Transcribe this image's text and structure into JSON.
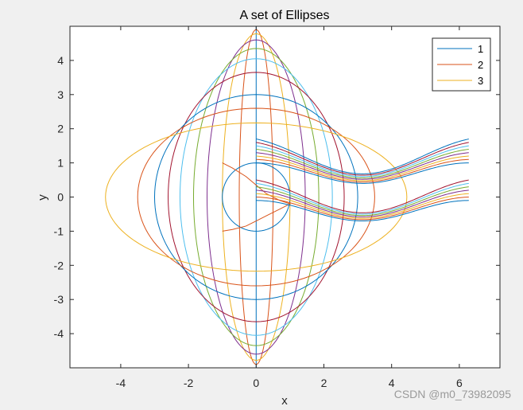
{
  "colors": {
    "figure_bg": "#f0f0f0",
    "axes_bg": "#ffffff",
    "axis_line": "#262626",
    "palette": [
      "#0072BD",
      "#D95319",
      "#EDB120",
      "#7E2F8E",
      "#77AC30",
      "#4DBEEE",
      "#A2142F"
    ]
  },
  "chart_data": {
    "type": "line",
    "title": "A set of Ellipses",
    "xlabel": "x",
    "ylabel": "y",
    "xlim": [
      -5.5,
      7.2
    ],
    "ylim": [
      -5,
      5
    ],
    "xticks": [
      -4,
      -2,
      0,
      2,
      4,
      6
    ],
    "yticks": [
      -4,
      -3,
      -2,
      -1,
      0,
      1,
      2,
      3,
      4
    ],
    "xtick_labels": [
      "-4",
      "-2",
      "0",
      "2",
      "4",
      "6"
    ],
    "ytick_labels": [
      "-4",
      "-3",
      "-2",
      "-1",
      "0",
      "1",
      "2",
      "3",
      "4"
    ],
    "grid": false,
    "legend": {
      "position": "top-right",
      "entries": [
        "1",
        "2",
        "3"
      ]
    },
    "ellipses": [
      {
        "a": 0.0,
        "b": 5.0
      },
      {
        "a": 0.5,
        "b": 4.9
      },
      {
        "a": 1.0,
        "b": 4.78
      },
      {
        "a": 1.45,
        "b": 4.6
      },
      {
        "a": 1.85,
        "b": 4.35
      },
      {
        "a": 2.25,
        "b": 4.05
      },
      {
        "a": 2.6,
        "b": 3.65
      },
      {
        "a": 3.0,
        "b": 3.0
      },
      {
        "a": 3.5,
        "b": 2.6
      },
      {
        "a": 4.45,
        "b": 2.17
      }
    ],
    "small_shapes": [
      {
        "type": "circle",
        "cx": 0,
        "cy": 0,
        "r": 1
      },
      {
        "type": "lissajous",
        "xs": [
          -1,
          -0.7,
          -0.3,
          0,
          0.3,
          0.7,
          1,
          0.7,
          0.3,
          0,
          -0.3,
          -0.7,
          -1
        ],
        "ys": [
          1,
          0.85,
          0.6,
          0.35,
          0.1,
          -0.1,
          -0.2,
          -0.35,
          -0.55,
          -0.7,
          -0.85,
          -0.95,
          -1
        ]
      }
    ],
    "wave_bundles": [
      {
        "x_start": 0,
        "x_end": 6.28,
        "offsets": [
          1.0,
          1.1,
          1.2,
          1.3,
          1.4,
          1.5,
          1.6,
          1.7
        ]
      },
      {
        "x_start": 0,
        "x_end": 6.28,
        "offsets": [
          -0.1,
          0.0,
          0.1,
          0.2,
          0.3,
          0.4,
          0.5
        ]
      }
    ]
  },
  "watermark": "CSDN @m0_73982095"
}
